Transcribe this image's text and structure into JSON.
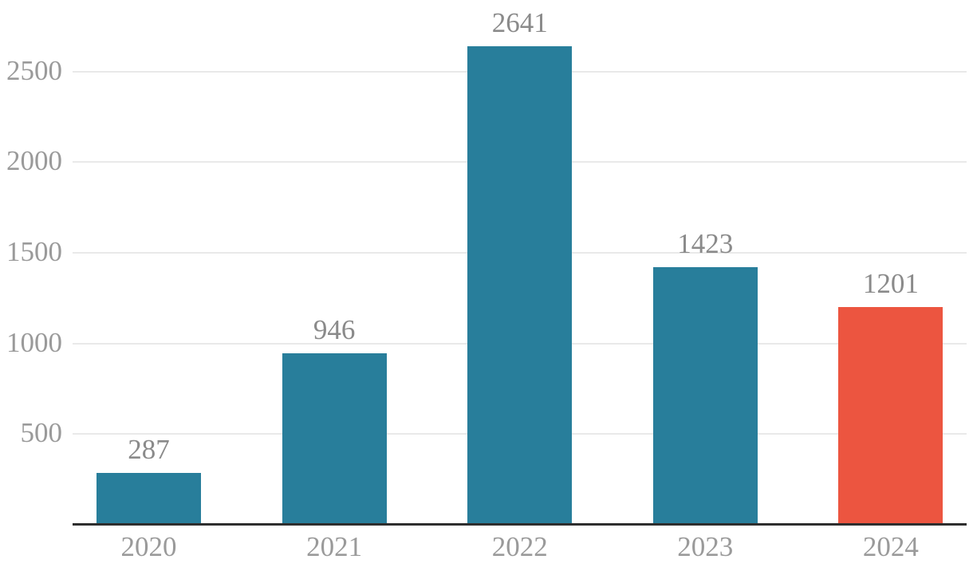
{
  "chart_data": {
    "type": "bar",
    "title": "",
    "xlabel": "",
    "ylabel": "",
    "categories": [
      "2020",
      "2021",
      "2022",
      "2023",
      "2024"
    ],
    "values": [
      287,
      946,
      2641,
      1423,
      1201
    ],
    "value_labels": [
      "287",
      "946",
      "2641",
      "1423",
      "1201"
    ],
    "highlight_index": 4,
    "ytick_labels": [
      "500",
      "1000",
      "1500",
      "2000",
      "2500"
    ],
    "ytick_values": [
      500,
      1000,
      1500,
      2000,
      2500
    ],
    "ylim": [
      0,
      2895
    ],
    "grid": "horizontal",
    "legend_position": "none",
    "colors": {
      "bar": "#287e9b",
      "bar_highlight": "#ec5540",
      "gridline": "#e9e9e9",
      "axis_line": "#2e2e2e",
      "tick_label": "#9a9a9a",
      "value_label": "#8a8a8a",
      "background": "#ffffff"
    }
  }
}
